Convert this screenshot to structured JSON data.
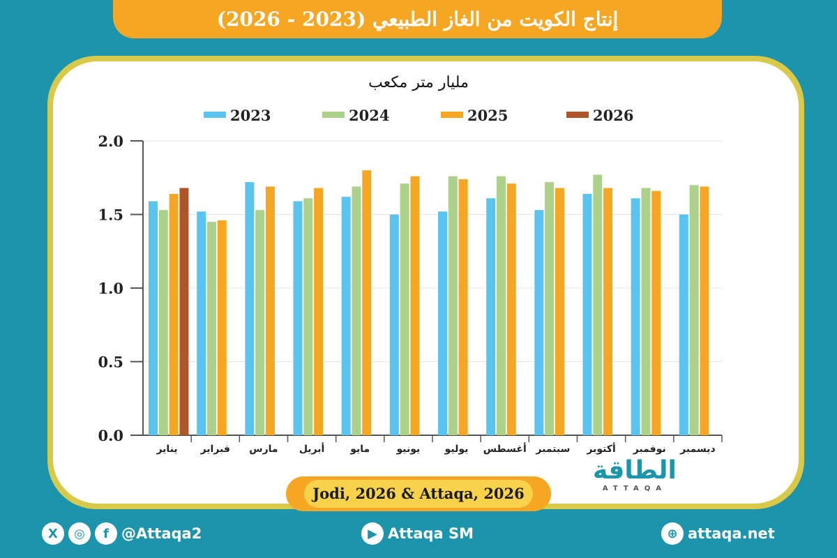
{
  "title": "إنتاج الكويت من الغاز الطبيعي (2023 - 2026)",
  "source": "Jodi, 2026 & Attaqa, 2026",
  "logo": {
    "arabic": "الطاقة",
    "latin": "ATTAQA"
  },
  "footer": {
    "social_handle": "@Attaqa2",
    "youtube": "Attaqa SM",
    "website": "attaqa.net"
  },
  "colors": {
    "background": "#1c94ab",
    "title_bar": "#f5a623",
    "card_border": "#d9c94a"
  },
  "chart_data": {
    "type": "bar",
    "ylabel": "مليار متر مكعب",
    "ylim": [
      0,
      2.0
    ],
    "yticks": [
      "0.0",
      "0.5",
      "1.0",
      "1.5",
      "2.0"
    ],
    "grid": true,
    "legend_position": "top",
    "categories": [
      "يناير",
      "فبراير",
      "مارس",
      "أبريل",
      "مايو",
      "يونيو",
      "يوليو",
      "أغسطس",
      "سبتمبر",
      "أكتوبر",
      "نوفمبر",
      "ديسمبر"
    ],
    "series": [
      {
        "name": "2023",
        "color": "#5bc4ee",
        "values": [
          1.59,
          1.52,
          1.72,
          1.59,
          1.62,
          1.5,
          1.52,
          1.61,
          1.53,
          1.64,
          1.61,
          1.5
        ]
      },
      {
        "name": "2024",
        "color": "#abd18a",
        "values": [
          1.53,
          1.45,
          1.53,
          1.61,
          1.69,
          1.71,
          1.76,
          1.76,
          1.72,
          1.77,
          1.68,
          1.7
        ]
      },
      {
        "name": "2025",
        "color": "#f5a623",
        "values": [
          1.64,
          1.46,
          1.69,
          1.68,
          1.8,
          1.76,
          1.74,
          1.71,
          1.68,
          1.68,
          1.66,
          1.69
        ]
      },
      {
        "name": "2026",
        "color": "#b0552a",
        "values": [
          1.68,
          null,
          null,
          null,
          null,
          null,
          null,
          null,
          null,
          null,
          null,
          null
        ]
      }
    ]
  }
}
